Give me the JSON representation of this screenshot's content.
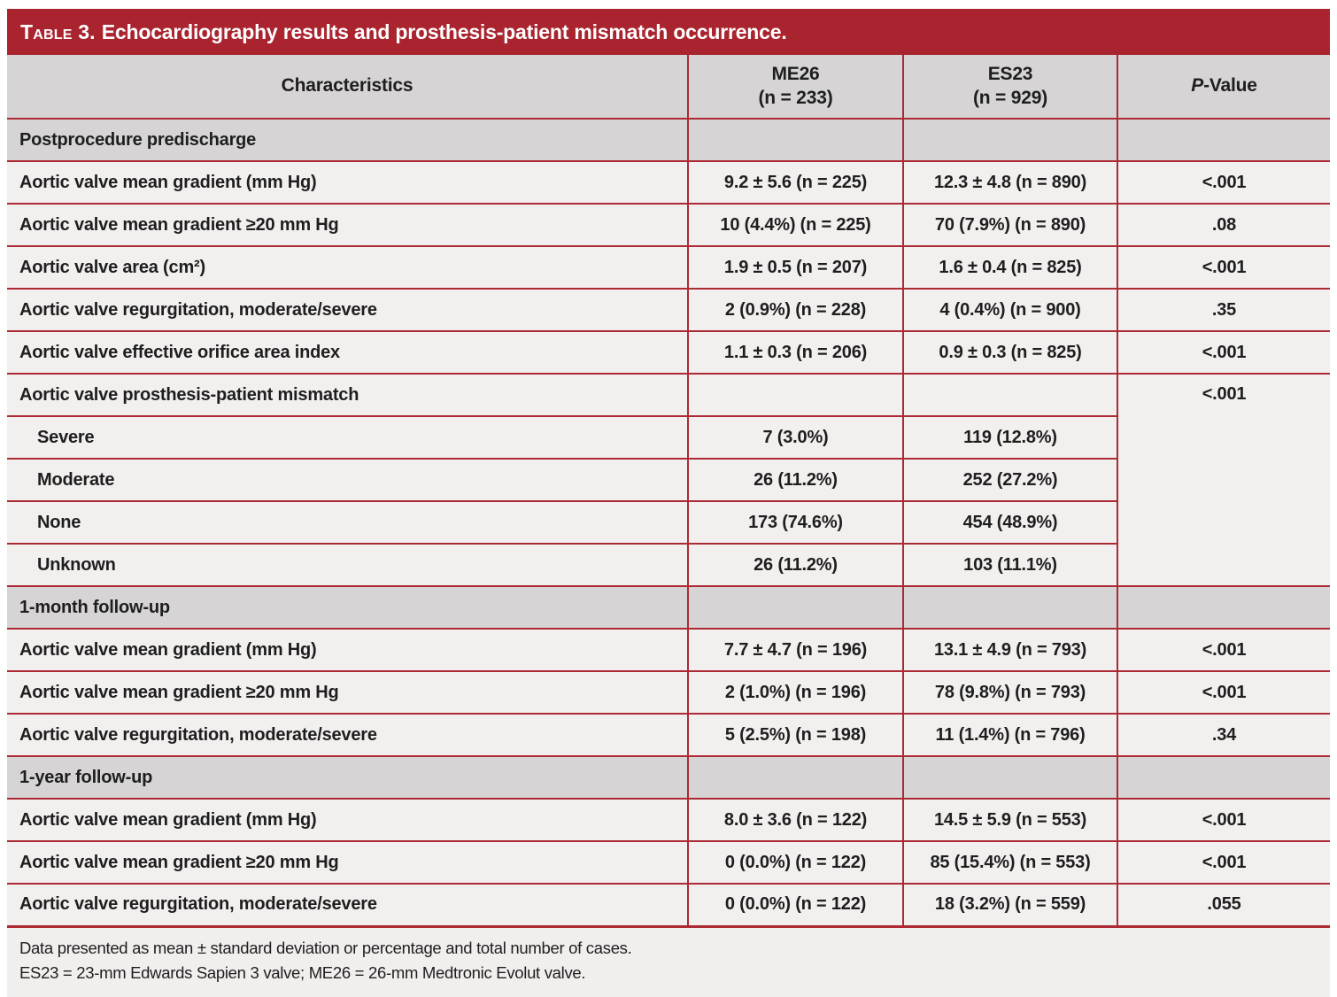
{
  "table": {
    "title": {
      "prefix": "Table 3.",
      "text": "Echocardiography results and prosthesis-patient mismatch occurrence."
    },
    "columns": {
      "characteristics": "Characteristics",
      "me26_line1": "ME26",
      "me26_line2": "(n = 233)",
      "es23_line1": "ES23",
      "es23_line2": "(n = 929)",
      "p_italic": "P",
      "p_rest": "-Value"
    },
    "rows": [
      {
        "type": "section",
        "label": "Postprocedure predischarge",
        "me26": "",
        "es23": "",
        "p": ""
      },
      {
        "type": "data",
        "label": "Aortic valve mean gradient (mm Hg)",
        "me26": "9.2 ± 5.6 (n = 225)",
        "es23": "12.3 ± 4.8 (n = 890)",
        "p": "<.001"
      },
      {
        "type": "data",
        "label": "Aortic valve mean gradient ≥20 mm Hg",
        "me26": "10 (4.4%) (n = 225)",
        "es23": "70 (7.9%) (n = 890)",
        "p": ".08"
      },
      {
        "type": "data",
        "label": "Aortic valve area (cm²)",
        "me26": "1.9 ± 0.5 (n = 207)",
        "es23": "1.6 ± 0.4 (n = 825)",
        "p": "<.001"
      },
      {
        "type": "data",
        "label": "Aortic valve regurgitation, moderate/severe",
        "me26": "2 (0.9%) (n = 228)",
        "es23": "4 (0.4%) (n = 900)",
        "p": ".35"
      },
      {
        "type": "data",
        "label": "Aortic valve effective orifice area index",
        "me26": "1.1 ± 0.3 (n = 206)",
        "es23": "0.9 ± 0.3 (n = 825)",
        "p": "<.001"
      },
      {
        "type": "data",
        "label": "Aortic valve prosthesis-patient mismatch",
        "me26": "",
        "es23": "",
        "p": "<.001",
        "p_rowspan": 5
      },
      {
        "type": "sub",
        "label": "Severe",
        "me26": "7 (3.0%)",
        "es23": "119 (12.8%)"
      },
      {
        "type": "sub",
        "label": "Moderate",
        "me26": "26 (11.2%)",
        "es23": "252 (27.2%)"
      },
      {
        "type": "sub",
        "label": "None",
        "me26": "173 (74.6%)",
        "es23": "454 (48.9%)"
      },
      {
        "type": "sub",
        "label": "Unknown",
        "me26": "26 (11.2%)",
        "es23": "103 (11.1%)"
      },
      {
        "type": "section",
        "label": "1-month follow-up",
        "me26": "",
        "es23": "",
        "p": ""
      },
      {
        "type": "data",
        "label": "Aortic valve mean gradient (mm Hg)",
        "me26": "7.7 ± 4.7 (n = 196)",
        "es23": "13.1 ± 4.9 (n = 793)",
        "p": "<.001"
      },
      {
        "type": "data",
        "label": "Aortic valve mean gradient ≥20 mm Hg",
        "me26": "2 (1.0%) (n = 196)",
        "es23": "78 (9.8%) (n = 793)",
        "p": "<.001"
      },
      {
        "type": "data",
        "label": "Aortic valve regurgitation, moderate/severe",
        "me26": "5 (2.5%) (n = 198)",
        "es23": "11 (1.4%) (n = 796)",
        "p": ".34"
      },
      {
        "type": "section",
        "label": "1-year follow-up",
        "me26": "",
        "es23": "",
        "p": ""
      },
      {
        "type": "data",
        "label": "Aortic valve mean gradient (mm Hg)",
        "me26": "8.0 ± 3.6 (n = 122)",
        "es23": "14.5 ± 5.9 (n = 553)",
        "p": "<.001"
      },
      {
        "type": "data",
        "label": "Aortic valve mean gradient ≥20 mm Hg",
        "me26": "0 (0.0%) (n = 122)",
        "es23": "85 (15.4%) (n = 553)",
        "p": "<.001"
      },
      {
        "type": "data",
        "label": "Aortic valve regurgitation, moderate/severe",
        "me26": "0 (0.0%) (n = 122)",
        "es23": "18 (3.2%) (n = 559)",
        "p": ".055"
      }
    ],
    "footnotes": [
      "Data presented as mean ± standard deviation or percentage and total number of cases.",
      "ES23 = 23-mm Edwards Sapien 3 valve; ME26 = 26-mm Medtronic Evolut valve."
    ],
    "colors": {
      "title_bar_red": "#a9242f",
      "grid_line_red": "#ad2a34",
      "section_row_gray": "#d6d4d4",
      "data_row_bg": "#f2f0ef",
      "footnote_bg": "#f1efee",
      "text": "#1f1e1e",
      "title_text": "#ffffff"
    }
  }
}
